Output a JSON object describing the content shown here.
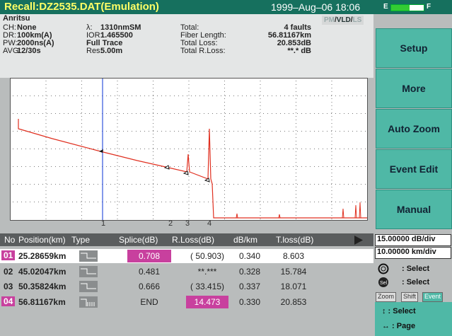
{
  "header": {
    "title": "Recall:DZ2535.DAT(Emulation)",
    "datetime": "1999–Aug–06 18:06",
    "battery_empty": "E",
    "battery_full": "F"
  },
  "info": {
    "brand": "Anritsu",
    "modes": {
      "pm": "PM",
      "vld": "VLD",
      "ls": "LS"
    },
    "col1": [
      [
        "CH:",
        "None"
      ],
      [
        "DR:",
        "100km(A)"
      ],
      [
        "PW:",
        "2000ns(A)"
      ],
      [
        "AVG:",
        "12/30s"
      ]
    ],
    "col2": [
      [
        "λ:",
        "1310nmSM"
      ],
      [
        "IOR:",
        "1.465500"
      ],
      [
        "",
        "Full Trace"
      ],
      [
        "Res:",
        "5.00m"
      ]
    ],
    "col3": [
      [
        "Total:",
        "4 faults"
      ],
      [
        "Fiber Length:",
        "56.81167km"
      ],
      [
        "Total Loss:",
        "20.853dB"
      ],
      [
        "Total R.Loss:",
        "**.* dB"
      ]
    ]
  },
  "buttons": [
    "Setup",
    "More",
    "Auto Zoom",
    "Event Edit",
    "Manual"
  ],
  "event_markers": [
    "1",
    "2",
    "3",
    "4"
  ],
  "table": {
    "headers": [
      "No",
      "Position(km)",
      "Type",
      "Splice(dB)",
      "R.Loss(dB)",
      "dB/km",
      "T.loss(dB)"
    ],
    "rows": [
      [
        "01",
        "25.28659km",
        "",
        "0.708",
        "( 50.903)",
        "0.340",
        "8.603"
      ],
      [
        "02",
        "45.02047km",
        "",
        "0.481",
        "**.***",
        "0.328",
        "15.784"
      ],
      [
        "03",
        "50.35824km",
        "",
        "0.666",
        "( 33.415)",
        "0.337",
        "18.071"
      ],
      [
        "04",
        "56.81167km",
        "",
        "END",
        "14.473",
        "0.330",
        "20.853"
      ]
    ]
  },
  "side_panel": {
    "vertical_scale": "15.00000 dB/div",
    "horizontal_scale": "10.00000 km/div",
    "knob_hint": ": Select",
    "sel_hint": ": Select",
    "tabs": [
      "Zoom",
      "Shift",
      "Event"
    ],
    "arrow_v": "↕ : Select",
    "arrow_h": "↔ : Page"
  }
}
